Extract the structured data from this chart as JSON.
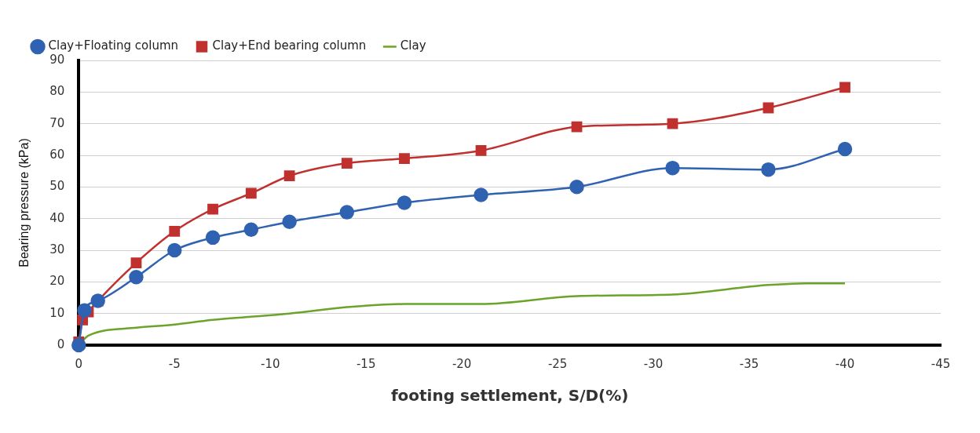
{
  "chart_data": {
    "type": "line",
    "xlabel": "footing settlement, S/D(%)",
    "ylabel": "Bearing pressure (kPa)",
    "xlim": [
      0,
      -45
    ],
    "xticks": [
      0,
      -5,
      -10,
      -15,
      -20,
      -25,
      -30,
      -35,
      -40,
      -45
    ],
    "ylim": [
      0,
      90
    ],
    "yticks": [
      0,
      10,
      20,
      30,
      40,
      50,
      60,
      70,
      80,
      90
    ],
    "grid": "y",
    "legend": "top left",
    "series": [
      {
        "name": "Clay+Floating column",
        "color": "#2f62b0",
        "marker": "circle",
        "x": [
          0,
          -0.3,
          -1,
          -3,
          -5,
          -7,
          -9,
          -11,
          -14,
          -17,
          -21,
          -26,
          -31,
          -36,
          -40
        ],
        "values": [
          0,
          11,
          14,
          21.5,
          30,
          34,
          36.5,
          39,
          42,
          45,
          47.5,
          50,
          56,
          55.5,
          62
        ]
      },
      {
        "name": "Clay+End bearing column",
        "color": "#c0302e",
        "marker": "square",
        "x": [
          0,
          -0.2,
          -0.5,
          -1,
          -3,
          -5,
          -7,
          -9,
          -11,
          -14,
          -17,
          -21,
          -26,
          -31,
          -36,
          -40
        ],
        "values": [
          1,
          8,
          10.5,
          14,
          26,
          36,
          43,
          48,
          53.5,
          57.5,
          59,
          61.5,
          69,
          70,
          75,
          81.5
        ]
      },
      {
        "name": "Clay",
        "color": "#6aa42a",
        "marker": "none",
        "x": [
          0,
          -0.5,
          -3,
          -5,
          -7,
          -9,
          -11,
          -14,
          -17,
          -21,
          -26,
          -31,
          -36,
          -38,
          -40
        ],
        "values": [
          0,
          3,
          5.5,
          6.5,
          8,
          9,
          10,
          12,
          13,
          13,
          15.5,
          16,
          19,
          19.5,
          19.5
        ]
      }
    ]
  }
}
